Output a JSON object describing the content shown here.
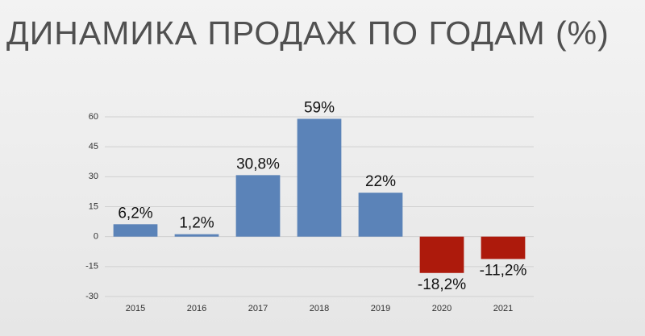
{
  "chart_data": {
    "type": "bar",
    "title": "ДИНАМИКА ПРОДАЖ ПО ГОДАМ (%)",
    "categories": [
      "2015",
      "2016",
      "2017",
      "2018",
      "2019",
      "2020",
      "2021"
    ],
    "values": [
      6.2,
      1.2,
      30.8,
      59,
      22,
      -18.2,
      -11.2
    ],
    "value_labels": [
      "6,2%",
      "1,2%",
      "30,8%",
      "59%",
      "22%",
      "-18,2%",
      "-11,2%"
    ],
    "colors": [
      "#5b83b8",
      "#5b83b8",
      "#5b83b8",
      "#5b83b8",
      "#5b83b8",
      "#ad1a0c",
      "#ad1a0c"
    ],
    "ylim": [
      -30,
      60
    ],
    "yticks": [
      -30,
      -15,
      0,
      15,
      30,
      45,
      60
    ],
    "grid": true
  }
}
